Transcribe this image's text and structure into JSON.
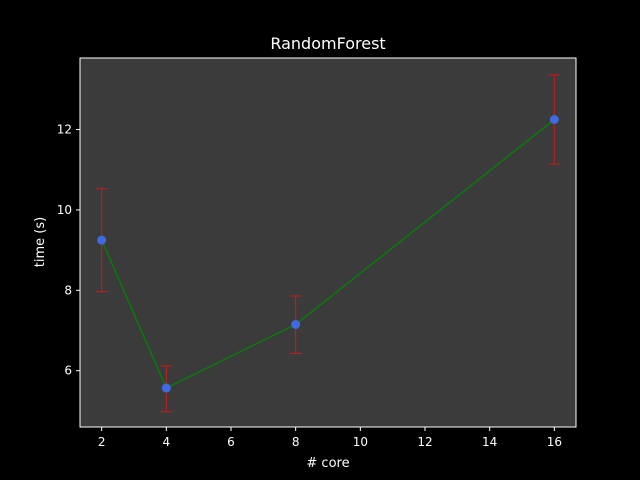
{
  "chart_data": {
    "type": "line",
    "title": "RandomForest",
    "xlabel": "# core",
    "ylabel": "time (s)",
    "xlim": [
      1.33,
      16.67
    ],
    "ylim": [
      4.6,
      13.78
    ],
    "xticks": [
      2,
      4,
      6,
      8,
      10,
      12,
      14,
      16
    ],
    "yticks": [
      6,
      8,
      10,
      12
    ],
    "grid": false,
    "series": [
      {
        "x": [
          2,
          4,
          8,
          16
        ],
        "y": [
          9.25,
          5.57,
          7.15,
          12.25
        ],
        "yerr_low": [
          7.97,
          4.98,
          6.43,
          11.14
        ],
        "yerr_high": [
          10.53,
          6.12,
          7.86,
          13.36
        ]
      }
    ],
    "colors": {
      "background": "#000000",
      "plot_area": "#3b3b3b",
      "axes": "#ffffff",
      "line": "#0a7a0a",
      "marker": "#4169e1",
      "errorbar": "#b22222"
    }
  }
}
